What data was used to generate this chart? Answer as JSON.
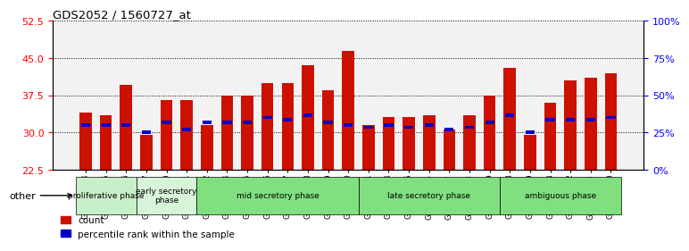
{
  "title": "GDS2052 / 1560727_at",
  "samples": [
    "GSM109814",
    "GSM109815",
    "GSM109816",
    "GSM109817",
    "GSM109820",
    "GSM109821",
    "GSM109822",
    "GSM109824",
    "GSM109825",
    "GSM109826",
    "GSM109827",
    "GSM109828",
    "GSM109829",
    "GSM109830",
    "GSM109831",
    "GSM109834",
    "GSM109835",
    "GSM109836",
    "GSM109837",
    "GSM109838",
    "GSM109839",
    "GSM109818",
    "GSM109819",
    "GSM109823",
    "GSM109832",
    "GSM109833",
    "GSM109840"
  ],
  "count_values": [
    34.0,
    33.5,
    39.5,
    29.5,
    36.5,
    36.5,
    31.5,
    37.5,
    37.5,
    40.0,
    40.0,
    43.5,
    38.5,
    46.5,
    31.5,
    33.0,
    33.0,
    33.5,
    30.5,
    33.5,
    37.5,
    43.0,
    29.5,
    36.0,
    40.5,
    41.0,
    42.0
  ],
  "percentile_values": [
    31.5,
    31.5,
    31.5,
    30.0,
    32.0,
    30.5,
    32.0,
    32.0,
    32.0,
    33.0,
    32.5,
    33.5,
    32.0,
    31.5,
    31.0,
    31.5,
    31.0,
    31.5,
    30.5,
    31.0,
    32.0,
    33.5,
    30.0,
    32.5,
    32.5,
    32.5,
    33.0
  ],
  "phase_spans": [
    {
      "label": "proliferative phase",
      "start": 0,
      "end": 3,
      "color": "#c8f0c8"
    },
    {
      "label": "early secretory\nphase",
      "start": 3,
      "end": 6,
      "color": "#d8f4d8"
    },
    {
      "label": "mid secretory phase",
      "start": 6,
      "end": 14,
      "color": "#80e080"
    },
    {
      "label": "late secretory phase",
      "start": 14,
      "end": 21,
      "color": "#80e080"
    },
    {
      "label": "ambiguous phase",
      "start": 21,
      "end": 27,
      "color": "#80e080"
    }
  ],
  "ymin": 22.5,
  "ymax": 52.5,
  "yticks": [
    22.5,
    30.0,
    37.5,
    45.0,
    52.5
  ],
  "right_yticks": [
    0,
    25,
    50,
    75,
    100
  ],
  "bar_color": "#cc1100",
  "percentile_color": "#0000cc",
  "bg_color": "#ffffff",
  "plot_bg_color": "#f2f2f2",
  "grid_color": "#000000"
}
